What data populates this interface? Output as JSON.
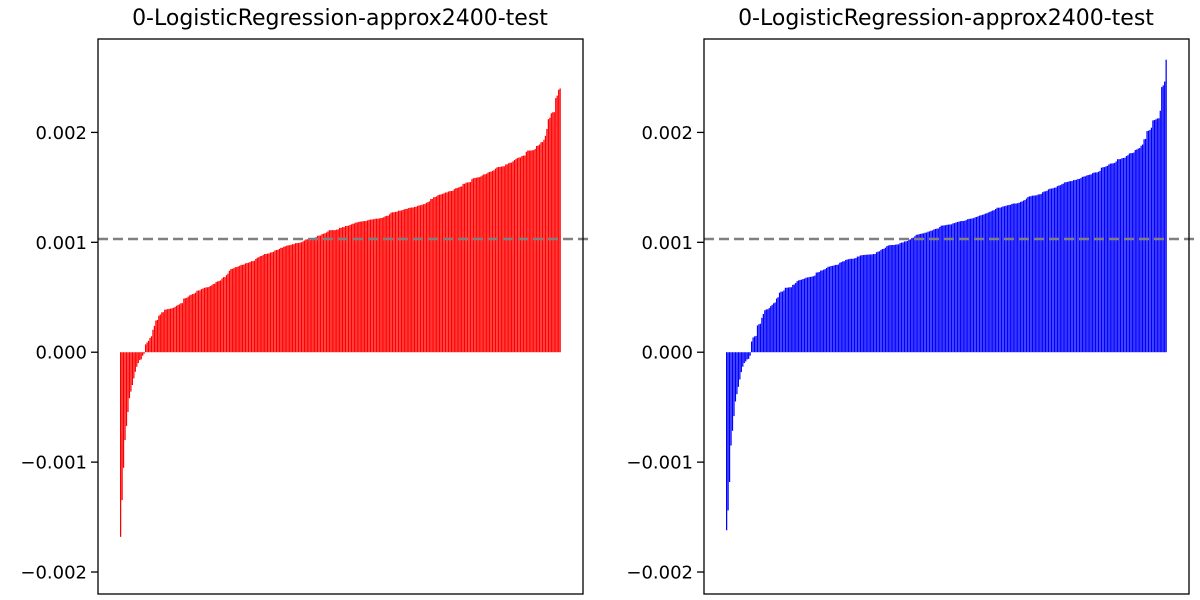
{
  "chart_data": [
    {
      "type": "bar",
      "title": "0-LogisticRegression-approx2400-test",
      "color": "#ff0000",
      "ylim": [
        -0.0022,
        0.00285
      ],
      "yticks": [
        -0.002,
        -0.001,
        0.0,
        0.001,
        0.002
      ],
      "ytick_labels": [
        "−0.002",
        "−0.001",
        "0.000",
        "0.001",
        "0.002"
      ],
      "xticks": "none",
      "reference_line": {
        "y": 0.00103,
        "style": "dashed",
        "color": "#808080"
      },
      "sorted_ascending": true,
      "n_bars": 300,
      "value_profile": [
        [
          0.0,
          -0.00168
        ],
        [
          0.005,
          -0.00118
        ],
        [
          0.01,
          -0.0008
        ],
        [
          0.02,
          -0.00042
        ],
        [
          0.035,
          -0.00015
        ],
        [
          0.05,
          0.0
        ],
        [
          0.08,
          0.00025
        ],
        [
          0.12,
          0.00045
        ],
        [
          0.2,
          0.0006
        ],
        [
          0.3,
          0.00085
        ],
        [
          0.4,
          0.001
        ],
        [
          0.5,
          0.00112
        ],
        [
          0.6,
          0.00125
        ],
        [
          0.7,
          0.00138
        ],
        [
          0.8,
          0.00155
        ],
        [
          0.9,
          0.00172
        ],
        [
          0.95,
          0.00188
        ],
        [
          0.98,
          0.0021
        ],
        [
          1.0,
          0.00243
        ]
      ]
    },
    {
      "type": "bar",
      "title": "0-LogisticRegression-approx2400-test",
      "color": "#0000ff",
      "ylim": [
        -0.0022,
        0.00285
      ],
      "yticks": [
        -0.002,
        -0.001,
        0.0,
        0.001,
        0.002
      ],
      "ytick_labels": [
        "−0.002",
        "−0.001",
        "0.000",
        "0.001",
        "0.002"
      ],
      "xticks": "none",
      "reference_line": {
        "y": 0.00103,
        "style": "dashed",
        "color": "#808080"
      },
      "sorted_ascending": true,
      "n_bars": 300,
      "value_profile": [
        [
          0.0,
          -0.00162
        ],
        [
          0.005,
          -0.00135
        ],
        [
          0.01,
          -0.00085
        ],
        [
          0.02,
          -0.00045
        ],
        [
          0.035,
          -0.00015
        ],
        [
          0.05,
          0.0
        ],
        [
          0.08,
          0.0003
        ],
        [
          0.12,
          0.0005
        ],
        [
          0.2,
          0.00075
        ],
        [
          0.3,
          0.0009
        ],
        [
          0.4,
          0.001
        ],
        [
          0.5,
          0.00112
        ],
        [
          0.6,
          0.00128
        ],
        [
          0.7,
          0.00142
        ],
        [
          0.8,
          0.00158
        ],
        [
          0.9,
          0.00178
        ],
        [
          0.95,
          0.00192
        ],
        [
          0.98,
          0.00212
        ],
        [
          1.0,
          0.00253
        ]
      ]
    }
  ]
}
